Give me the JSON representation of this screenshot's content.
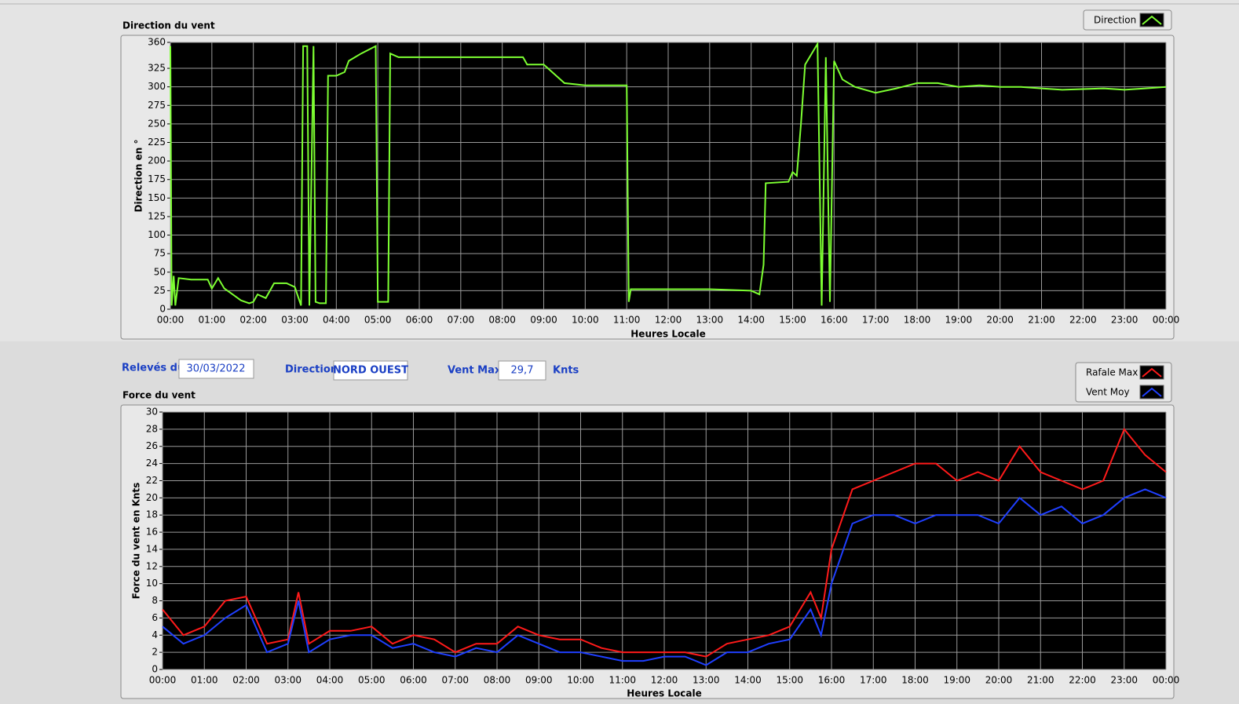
{
  "chart_data": [
    {
      "type": "line",
      "title": "Direction du vent",
      "y_label": "Direction en °",
      "x_label": "Heures Locale",
      "x": [
        0,
        0.03,
        0.08,
        0.12,
        0.2,
        0.5,
        0.9,
        1.0,
        1.15,
        1.3,
        1.5,
        1.7,
        1.9,
        2.0,
        2.1,
        2.3,
        2.4,
        2.5,
        2.8,
        3.0,
        3.15,
        3.2,
        3.3,
        3.35,
        3.45,
        3.5,
        3.6,
        3.75,
        3.8,
        4.0,
        4.2,
        4.3,
        4.6,
        4.95,
        5.0,
        5.25,
        5.3,
        5.5,
        8.5,
        8.6,
        9.0,
        9.5,
        10.0,
        11.0,
        11.05,
        11.1,
        12.0,
        13.0,
        14.0,
        14.2,
        14.3,
        14.35,
        14.9,
        15.0,
        15.1,
        15.2,
        15.3,
        15.6,
        15.7,
        15.8,
        15.9,
        16.0,
        16.2,
        16.5,
        17.0,
        17.5,
        18.0,
        18.5,
        19.0,
        19.5,
        20.0,
        20.5,
        21.0,
        21.5,
        22.0,
        22.5,
        23.0,
        23.5,
        24.0
      ],
      "series": [
        {
          "name": "Direction",
          "color": "#7dff32",
          "values": [
            355,
            5,
            45,
            5,
            42,
            40,
            40,
            28,
            42,
            28,
            20,
            12,
            8,
            10,
            20,
            15,
            25,
            35,
            35,
            30,
            5,
            355,
            355,
            5,
            355,
            10,
            8,
            8,
            315,
            315,
            320,
            335,
            345,
            355,
            10,
            10,
            345,
            340,
            340,
            330,
            330,
            305,
            302,
            302,
            10,
            27,
            27,
            27,
            25,
            20,
            60,
            170,
            172,
            185,
            180,
            250,
            330,
            358,
            5,
            340,
            10,
            335,
            310,
            300,
            292,
            298,
            305,
            305,
            300,
            302,
            300,
            300,
            298,
            296,
            297,
            298,
            296,
            298,
            300
          ]
        }
      ],
      "xlim": [
        0,
        24
      ],
      "xticks": [
        {
          "value": 0,
          "label": "00:00"
        },
        {
          "value": 1,
          "label": "01:00"
        },
        {
          "value": 2,
          "label": "02:00"
        },
        {
          "value": 3,
          "label": "03:00"
        },
        {
          "value": 4,
          "label": "04:00"
        },
        {
          "value": 5,
          "label": "05:00"
        },
        {
          "value": 6,
          "label": "06:00"
        },
        {
          "value": 7,
          "label": "07:00"
        },
        {
          "value": 8,
          "label": "08:00"
        },
        {
          "value": 9,
          "label": "09:00"
        },
        {
          "value": 10,
          "label": "10:00"
        },
        {
          "value": 11,
          "label": "11:00"
        },
        {
          "value": 12,
          "label": "12:00"
        },
        {
          "value": 13,
          "label": "13:00"
        },
        {
          "value": 14,
          "label": "14:00"
        },
        {
          "value": 15,
          "label": "15:00"
        },
        {
          "value": 16,
          "label": "16:00"
        },
        {
          "value": 17,
          "label": "17:00"
        },
        {
          "value": 18,
          "label": "18:00"
        },
        {
          "value": 19,
          "label": "19:00"
        },
        {
          "value": 20,
          "label": "20:00"
        },
        {
          "value": 21,
          "label": "21:00"
        },
        {
          "value": 22,
          "label": "22:00"
        },
        {
          "value": 23,
          "label": "23:00"
        },
        {
          "value": 24,
          "label": "00:00"
        }
      ],
      "ylim": [
        0,
        360
      ],
      "yticks": [
        0,
        25,
        50,
        75,
        100,
        125,
        150,
        175,
        200,
        225,
        250,
        275,
        300,
        325,
        360
      ],
      "grid": true,
      "legend": "top-right"
    },
    {
      "type": "line",
      "title": "Force du vent",
      "y_label": "Force du vent en Knts",
      "x_label": "Heures Locale",
      "x": [
        0,
        0.5,
        1.0,
        1.5,
        2.0,
        2.5,
        3.0,
        3.25,
        3.5,
        4.0,
        4.5,
        5.0,
        5.5,
        6.0,
        6.5,
        7.0,
        7.5,
        8.0,
        8.5,
        9.0,
        9.5,
        10.0,
        10.5,
        11.0,
        11.5,
        12.0,
        12.5,
        13.0,
        13.5,
        14.0,
        14.5,
        15.0,
        15.5,
        15.75,
        16.0,
        16.5,
        17.0,
        17.5,
        18.0,
        18.5,
        19.0,
        19.5,
        20.0,
        20.5,
        21.0,
        21.5,
        22.0,
        22.5,
        23.0,
        23.5,
        24.0
      ],
      "series": [
        {
          "name": "Rafale Max",
          "color": "#ff1a1a",
          "values": [
            7,
            4,
            5,
            8,
            8.5,
            3,
            3.5,
            9,
            3,
            4.5,
            4.5,
            5,
            3,
            4,
            3.5,
            2,
            3,
            3,
            5,
            4,
            3.5,
            3.5,
            2.5,
            2,
            2,
            2,
            2,
            1.5,
            3,
            3.5,
            4,
            5,
            9,
            6,
            14,
            21,
            22,
            23,
            24,
            24,
            22,
            23,
            22,
            26,
            23,
            22,
            21,
            22,
            28,
            25,
            23
          ]
        },
        {
          "name": "Vent Moy",
          "color": "#1f3fff",
          "values": [
            5,
            3,
            4,
            6,
            7.5,
            2,
            3,
            8,
            2,
            3.5,
            4,
            4,
            2.5,
            3,
            2,
            1.5,
            2.5,
            2,
            4,
            3,
            2,
            2,
            1.5,
            1,
            1,
            1.5,
            1.5,
            0.5,
            2,
            2,
            3,
            3.5,
            7,
            4,
            10,
            17,
            18,
            18,
            17,
            18,
            18,
            18,
            17,
            20,
            18,
            19,
            17,
            18,
            20,
            21,
            20
          ]
        }
      ],
      "xlim": [
        0,
        24
      ],
      "xticks": [
        {
          "value": 0,
          "label": "00:00"
        },
        {
          "value": 1,
          "label": "01:00"
        },
        {
          "value": 2,
          "label": "02:00"
        },
        {
          "value": 3,
          "label": "03:00"
        },
        {
          "value": 4,
          "label": "04:00"
        },
        {
          "value": 5,
          "label": "05:00"
        },
        {
          "value": 6,
          "label": "06:00"
        },
        {
          "value": 7,
          "label": "07:00"
        },
        {
          "value": 8,
          "label": "08:00"
        },
        {
          "value": 9,
          "label": "09:00"
        },
        {
          "value": 10,
          "label": "10:00"
        },
        {
          "value": 11,
          "label": "11:00"
        },
        {
          "value": 12,
          "label": "12:00"
        },
        {
          "value": 13,
          "label": "13:00"
        },
        {
          "value": 14,
          "label": "14:00"
        },
        {
          "value": 15,
          "label": "15:00"
        },
        {
          "value": 16,
          "label": "16:00"
        },
        {
          "value": 17,
          "label": "17:00"
        },
        {
          "value": 18,
          "label": "18:00"
        },
        {
          "value": 19,
          "label": "19:00"
        },
        {
          "value": 20,
          "label": "20:00"
        },
        {
          "value": 21,
          "label": "21:00"
        },
        {
          "value": 22,
          "label": "22:00"
        },
        {
          "value": 23,
          "label": "23:00"
        },
        {
          "value": 24,
          "label": "00:00"
        }
      ],
      "ylim": [
        0,
        30
      ],
      "yticks": [
        0,
        2,
        4,
        6,
        8,
        10,
        12,
        14,
        16,
        18,
        20,
        22,
        24,
        26,
        28,
        30
      ],
      "grid": true,
      "legend": "top-right"
    }
  ],
  "form": {
    "date_label": "Relevés du",
    "date": "30/03/2022",
    "direction_label": "Direction",
    "direction": "NORD OUEST",
    "vent_max_label": "Vent Max",
    "vent_max": "29,7",
    "unit": "Knts"
  }
}
